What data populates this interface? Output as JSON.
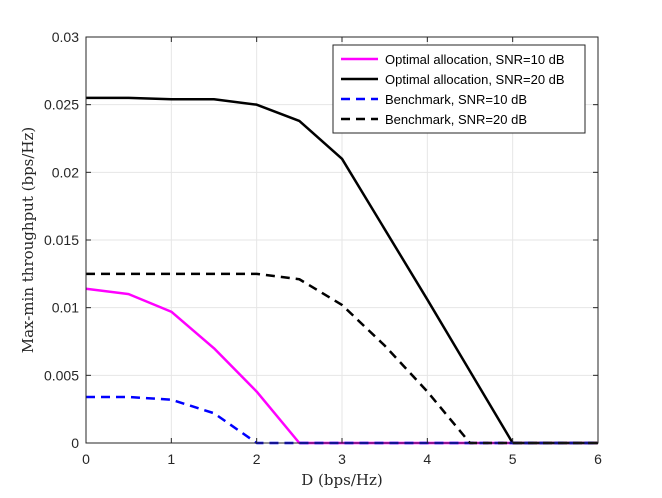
{
  "chart_data": {
    "type": "line",
    "title": "",
    "xlabel": "D (bps/Hz)",
    "ylabel": "Max-min throughput (bps/Hz)",
    "xlim": [
      0,
      6
    ],
    "ylim": [
      0,
      0.03
    ],
    "xticks": [
      "0",
      "1",
      "2",
      "3",
      "4",
      "5",
      "6"
    ],
    "yticks": [
      "0",
      "0.005",
      "0.01",
      "0.015",
      "0.02",
      "0.025",
      "0.03"
    ],
    "grid": true,
    "legend_position": "top-right",
    "series": [
      {
        "name": "Optimal allocation, SNR=10 dB",
        "color": "#ff00ff",
        "dash": "solid",
        "x": [
          0,
          0.5,
          1,
          1.5,
          2,
          2.5,
          3,
          3.5,
          4,
          4.5,
          5,
          5.5,
          6
        ],
        "y": [
          0.0114,
          0.011,
          0.0097,
          0.007,
          0.0038,
          0,
          0,
          0,
          0,
          0,
          0,
          0,
          0
        ]
      },
      {
        "name": "Optimal allocation, SNR=20 dB",
        "color": "#000000",
        "dash": "solid",
        "x": [
          0,
          0.5,
          1,
          1.5,
          2,
          2.5,
          3,
          3.5,
          4,
          4.5,
          5,
          5.5,
          6
        ],
        "y": [
          0.0255,
          0.0255,
          0.0254,
          0.0254,
          0.025,
          0.0238,
          0.021,
          0.0158,
          0.0106,
          0.0053,
          0,
          0,
          0
        ]
      },
      {
        "name": "Benchmark, SNR=10 dB",
        "color": "#0000ff",
        "dash": "dashed",
        "x": [
          0,
          0.5,
          1,
          1.5,
          2,
          2.5,
          3,
          3.5,
          4,
          4.5,
          5,
          5.5,
          6
        ],
        "y": [
          0.0034,
          0.0034,
          0.0032,
          0.0022,
          0,
          0,
          0,
          0,
          0,
          0,
          0,
          0,
          0
        ]
      },
      {
        "name": "Benchmark, SNR=20 dB",
        "color": "#000000",
        "dash": "dashed",
        "x": [
          0,
          0.5,
          1,
          1.5,
          2,
          2.5,
          3,
          3.5,
          4,
          4.5,
          5,
          5.5,
          6
        ],
        "y": [
          0.0125,
          0.0125,
          0.0125,
          0.0125,
          0.0125,
          0.0121,
          0.0102,
          0.0072,
          0.0038,
          0,
          0,
          0,
          0
        ]
      }
    ]
  }
}
